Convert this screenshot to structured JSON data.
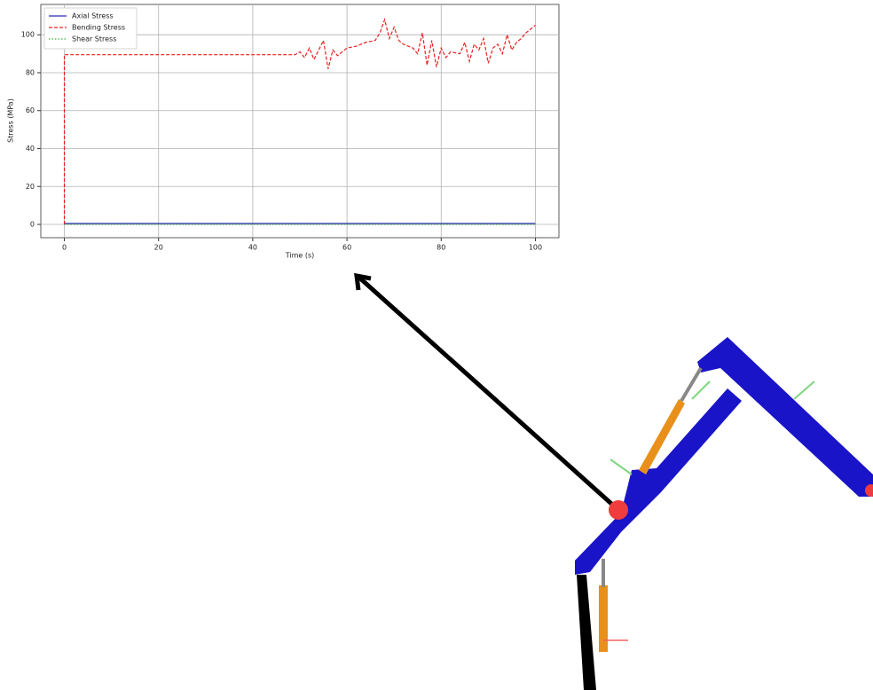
{
  "chart_data": {
    "type": "line",
    "xlabel": "Time (s)",
    "ylabel": "Stress (MPa)",
    "xlim": [
      -5,
      105
    ],
    "ylim": [
      -7,
      116
    ],
    "xticks": [
      0,
      20,
      40,
      60,
      80,
      100
    ],
    "yticks": [
      0,
      20,
      40,
      60,
      80,
      100
    ],
    "grid": true,
    "legend": "upper left",
    "series": [
      {
        "name": "Axial Stress",
        "color": "#2b2bb8",
        "style": "solid",
        "x": [
          0,
          100
        ],
        "values": [
          0.5,
          0.5
        ]
      },
      {
        "name": "Bending Stress",
        "color": "#e8201f",
        "style": "dashed",
        "x": [
          0,
          0,
          49,
          50,
          51,
          52,
          53,
          54,
          55,
          56,
          57,
          58,
          59,
          60,
          62,
          64,
          66,
          67,
          68,
          69,
          70,
          71,
          72,
          74,
          75,
          76,
          77,
          78,
          79,
          80,
          81,
          82,
          84,
          85,
          86,
          87,
          88,
          89,
          90,
          91,
          92,
          93,
          94,
          95,
          96,
          97,
          98,
          99,
          100
        ],
        "values": [
          0,
          89.5,
          89.5,
          91,
          88,
          93,
          87,
          92,
          97,
          82,
          92,
          89,
          91,
          93,
          94,
          96,
          97,
          101,
          108,
          98,
          104,
          97,
          95,
          93,
          90,
          101,
          84,
          97,
          83,
          93,
          88,
          91,
          90,
          96,
          86,
          95,
          92,
          98,
          85,
          93,
          95,
          90,
          100,
          92,
          96,
          98,
          101,
          103,
          105
        ]
      },
      {
        "name": "Shear Stress",
        "color": "#3cb043",
        "style": "dotted",
        "x": [
          0,
          100
        ],
        "values": [
          0,
          0
        ]
      }
    ]
  }
}
